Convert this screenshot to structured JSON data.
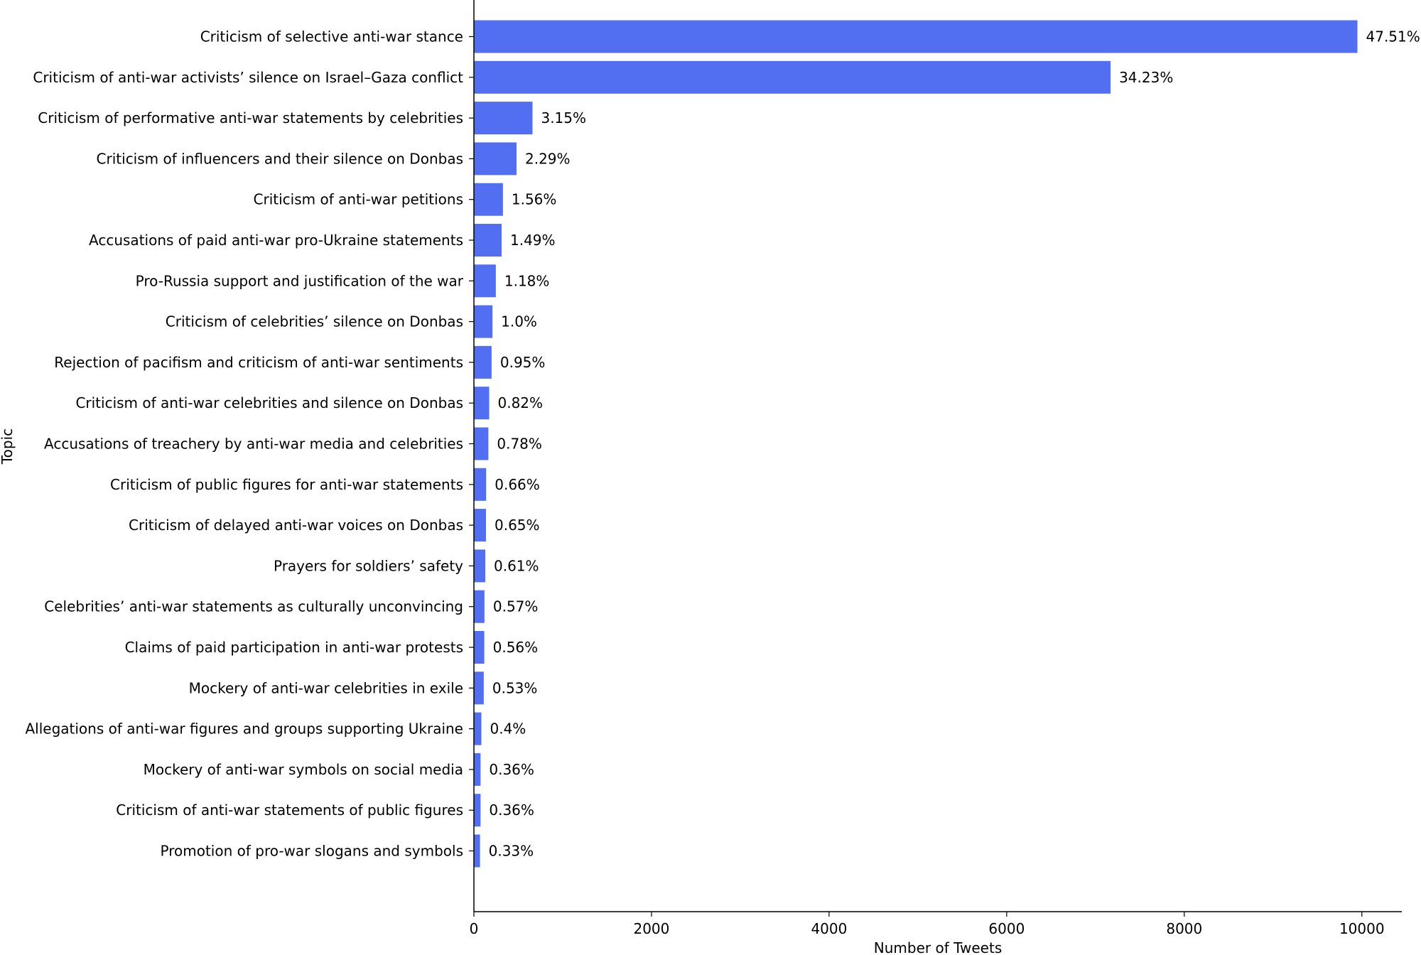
{
  "chart_data": {
    "type": "bar",
    "orientation": "horizontal",
    "title": "",
    "xlabel": "Number of Tweets",
    "ylabel": "Topic",
    "xlim": [
      0,
      10450
    ],
    "xticks": [
      0,
      2000,
      4000,
      6000,
      8000,
      10000
    ],
    "xtick_labels": [
      "0",
      "2000",
      "4000",
      "6000",
      "8000",
      "10000"
    ],
    "grid": false,
    "bar_color": "#516ff0",
    "categories": [
      "Criticism of selective anti-war stance",
      "Criticism of anti-war activists’ silence on Israel–Gaza conflict",
      "Criticism of performative anti-war statements by celebrities",
      "Criticism of influencers and their silence on Donbas",
      "Criticism of anti-war petitions",
      "Accusations of paid anti-war pro-Ukraine statements",
      "Pro-Russia support and justification of the war",
      "Criticism of celebrities’ silence on Donbas",
      "Rejection of pacifism and criticism of anti-war sentiments",
      "Criticism of anti-war celebrities and silence on Donbas",
      "Accusations of treachery by anti-war media and celebrities",
      "Criticism of public figures for anti-war statements",
      "Criticism of delayed anti-war voices on Donbas",
      "Prayers for soldiers’ safety",
      "Celebrities’ anti-war statements as culturally unconvincing",
      "Claims of paid participation in anti-war protests",
      "Mockery of anti-war celebrities in exile",
      "Allegations of anti-war figures and groups supporting Ukraine",
      "Mockery of anti-war symbols on social media",
      "Criticism of anti-war statements of public figures",
      "Promotion of pro-war slogans and symbols"
    ],
    "values": [
      9950,
      7170,
      660,
      480,
      327,
      312,
      247,
      209,
      199,
      172,
      163,
      138,
      136,
      128,
      119,
      117,
      111,
      84,
      75,
      75,
      69
    ],
    "value_labels": [
      "47.51%",
      "34.23%",
      "3.15%",
      "2.29%",
      "1.56%",
      "1.49%",
      "1.18%",
      "1.0%",
      "0.95%",
      "0.82%",
      "0.78%",
      "0.66%",
      "0.65%",
      "0.61%",
      "0.57%",
      "0.56%",
      "0.53%",
      "0.4%",
      "0.36%",
      "0.36%",
      "0.33%"
    ]
  }
}
